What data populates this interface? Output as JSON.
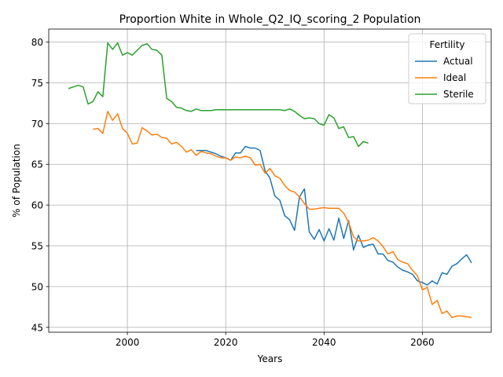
{
  "chart_data": {
    "type": "line",
    "title": "Proportion White in Whole_Q2_IQ_scoring_2 Population",
    "xlabel": "Years",
    "ylabel": "% of Population",
    "xlim": [
      1984,
      2074
    ],
    "ylim": [
      44.4,
      81.6
    ],
    "xticks": [
      2000,
      2020,
      2040,
      2060
    ],
    "yticks": [
      45,
      50,
      55,
      60,
      65,
      70,
      75,
      80
    ],
    "grid": true,
    "legend": {
      "title": "Fertility",
      "placement": "top-right"
    },
    "series": [
      {
        "name": "Actual",
        "color": "#1f77b4",
        "x": [
          2014,
          2015,
          2016,
          2017,
          2018,
          2019,
          2020,
          2021,
          2022,
          2023,
          2024,
          2025,
          2026,
          2027,
          2028,
          2029,
          2030,
          2031,
          2032,
          2033,
          2034,
          2035,
          2036,
          2037,
          2038,
          2039,
          2040,
          2041,
          2042,
          2043,
          2044,
          2045,
          2046,
          2047,
          2048,
          2049,
          2050,
          2051,
          2052,
          2053,
          2054,
          2055,
          2056,
          2057,
          2058,
          2059,
          2060,
          2061,
          2062,
          2063,
          2064,
          2065,
          2066,
          2067,
          2068,
          2069,
          2070
        ],
        "y": [
          66.7,
          66.7,
          66.7,
          66.5,
          66.3,
          66.0,
          65.8,
          65.5,
          66.4,
          66.4,
          67.2,
          67.0,
          67.0,
          66.7,
          64.2,
          63.3,
          61.1,
          60.6,
          58.7,
          58.2,
          56.9,
          61.0,
          62.0,
          56.7,
          55.8,
          57.0,
          55.6,
          57.1,
          55.7,
          58.4,
          55.9,
          58.1,
          54.5,
          56.3,
          54.8,
          55.1,
          55.2,
          54.0,
          54.0,
          53.2,
          53.0,
          52.4,
          52.0,
          51.8,
          51.5,
          50.7,
          50.5,
          50.2,
          50.7,
          50.3,
          51.7,
          51.5,
          52.5,
          52.8,
          53.4,
          53.9,
          52.9
        ]
      },
      {
        "name": "Ideal",
        "color": "#ff7f0e",
        "x": [
          1993,
          1994,
          1995,
          1996,
          1997,
          1998,
          1999,
          2000,
          2001,
          2002,
          2003,
          2004,
          2005,
          2006,
          2007,
          2008,
          2009,
          2010,
          2011,
          2012,
          2013,
          2014,
          2015,
          2016,
          2017,
          2018,
          2019,
          2020,
          2021,
          2022,
          2023,
          2024,
          2025,
          2026,
          2027,
          2028,
          2029,
          2030,
          2031,
          2032,
          2033,
          2034,
          2035,
          2036,
          2037,
          2038,
          2039,
          2040,
          2041,
          2042,
          2043,
          2044,
          2045,
          2046,
          2047,
          2048,
          2049,
          2050,
          2051,
          2052,
          2053,
          2054,
          2055,
          2056,
          2057,
          2058,
          2059,
          2060,
          2061,
          2062,
          2063,
          2064,
          2065,
          2066,
          2067,
          2068,
          2069,
          2070
        ],
        "y": [
          69.3,
          69.4,
          68.8,
          71.5,
          70.4,
          71.2,
          69.4,
          68.8,
          67.5,
          67.6,
          69.5,
          69.1,
          68.6,
          68.7,
          68.3,
          68.2,
          67.5,
          67.7,
          67.2,
          66.5,
          66.8,
          66.1,
          66.6,
          66.4,
          66.3,
          66.0,
          65.8,
          65.8,
          65.5,
          65.9,
          65.8,
          66.0,
          65.8,
          64.9,
          65.0,
          63.9,
          64.5,
          63.6,
          63.3,
          62.4,
          61.8,
          61.6,
          61.0,
          60.2,
          59.5,
          59.5,
          59.6,
          59.7,
          59.6,
          59.6,
          59.6,
          59.0,
          57.9,
          56.1,
          55.6,
          55.6,
          55.7,
          56.0,
          55.6,
          54.9,
          54.0,
          54.3,
          53.3,
          53.0,
          52.8,
          52.0,
          51.3,
          49.6,
          49.9,
          47.8,
          48.3,
          46.7,
          47.0,
          46.2,
          46.4,
          46.4,
          46.3,
          46.2
        ]
      },
      {
        "name": "Sterile",
        "color": "#2ca02c",
        "x": [
          1988,
          1989,
          1990,
          1991,
          1992,
          1993,
          1994,
          1995,
          1996,
          1997,
          1998,
          1999,
          2000,
          2001,
          2002,
          2003,
          2004,
          2005,
          2006,
          2007,
          2008,
          2009,
          2010,
          2011,
          2012,
          2013,
          2014,
          2015,
          2016,
          2017,
          2018,
          2019,
          2020,
          2021,
          2022,
          2023,
          2024,
          2025,
          2026,
          2027,
          2028,
          2029,
          2030,
          2031,
          2032,
          2033,
          2034,
          2035,
          2036,
          2037,
          2038,
          2039,
          2040,
          2041,
          2042,
          2043,
          2044,
          2045,
          2046,
          2047,
          2048,
          2049
        ],
        "y": [
          74.3,
          74.5,
          74.7,
          74.5,
          72.4,
          72.7,
          73.9,
          73.3,
          79.9,
          79.1,
          79.9,
          78.4,
          78.7,
          78.4,
          79.0,
          79.6,
          79.8,
          79.1,
          79.0,
          78.4,
          73.1,
          72.7,
          72.0,
          71.9,
          71.6,
          71.5,
          71.8,
          71.6,
          71.6,
          71.6,
          71.7,
          71.7,
          71.7,
          71.7,
          71.7,
          71.7,
          71.7,
          71.7,
          71.7,
          71.7,
          71.7,
          71.7,
          71.7,
          71.7,
          71.6,
          71.8,
          71.5,
          71.0,
          70.6,
          70.7,
          70.6,
          70.0,
          69.8,
          71.1,
          70.7,
          69.4,
          69.6,
          68.3,
          68.4,
          67.2,
          67.8,
          67.6
        ]
      }
    ]
  }
}
